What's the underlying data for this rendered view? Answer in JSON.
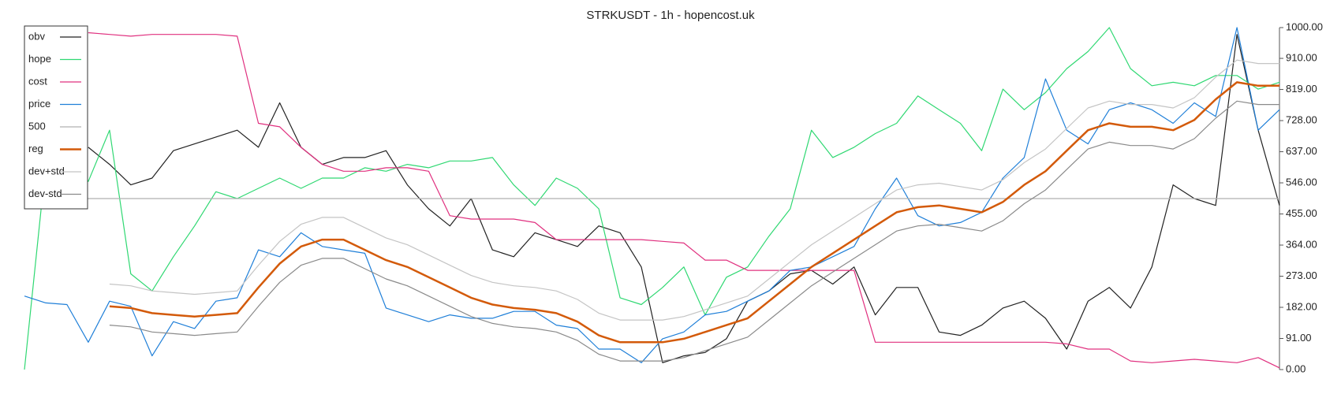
{
  "chart_data": {
    "type": "line",
    "title": "STRKUSDT - 1h - hopencost.uk",
    "ylim": [
      0,
      1000
    ],
    "yticks": [
      {
        "value": 0,
        "label": "0.00"
      },
      {
        "value": 91,
        "label": "91.00"
      },
      {
        "value": 182,
        "label": "182.00"
      },
      {
        "value": 273,
        "label": "273.00"
      },
      {
        "value": 364,
        "label": "364.00"
      },
      {
        "value": 455,
        "label": "455.00"
      },
      {
        "value": 546,
        "label": "546.00"
      },
      {
        "value": 637,
        "label": "637.00"
      },
      {
        "value": 728,
        "label": "728.00"
      },
      {
        "value": 819,
        "label": "819.00"
      },
      {
        "value": 910,
        "label": "910.00"
      },
      {
        "value": 1000,
        "label": "1000.00"
      }
    ],
    "y_axis_side": "right",
    "legend": "top-left",
    "grid": false,
    "series": [
      {
        "name": "obv",
        "color": "#222222",
        "width": 1.2,
        "values": [
          null,
          null,
          null,
          650,
          600,
          540,
          560,
          640,
          660,
          680,
          700,
          650,
          780,
          650,
          600,
          620,
          620,
          640,
          540,
          470,
          420,
          500,
          350,
          330,
          400,
          380,
          360,
          420,
          400,
          300,
          20,
          40,
          50,
          90,
          200,
          230,
          280,
          290,
          250,
          300,
          160,
          240,
          240,
          110,
          100,
          130,
          180,
          200,
          150,
          60,
          200,
          240,
          180,
          300,
          540,
          500,
          480,
          980,
          700,
          480
        ]
      },
      {
        "name": "hope",
        "color": "#2fd872",
        "width": 1.2,
        "values": [
          0,
          600,
          670,
          550,
          700,
          280,
          230,
          330,
          420,
          520,
          500,
          530,
          560,
          530,
          560,
          560,
          590,
          580,
          600,
          590,
          610,
          610,
          620,
          540,
          480,
          560,
          530,
          470,
          210,
          190,
          240,
          300,
          160,
          270,
          300,
          390,
          470,
          700,
          620,
          650,
          690,
          720,
          800,
          760,
          720,
          640,
          820,
          760,
          810,
          880,
          930,
          1000,
          880,
          830,
          840,
          830,
          860,
          860,
          820,
          840
        ]
      },
      {
        "name": "cost",
        "color": "#e0307f",
        "width": 1.2,
        "values": [
          null,
          null,
          null,
          985,
          980,
          975,
          980,
          980,
          980,
          980,
          975,
          720,
          710,
          650,
          600,
          580,
          580,
          590,
          590,
          580,
          450,
          440,
          440,
          440,
          430,
          380,
          380,
          380,
          380,
          380,
          375,
          370,
          320,
          320,
          290,
          290,
          290,
          290,
          290,
          290,
          80,
          80,
          80,
          80,
          80,
          80,
          80,
          80,
          80,
          75,
          60,
          60,
          25,
          20,
          25,
          30,
          25,
          20,
          35,
          5
        ]
      },
      {
        "name": "price",
        "color": "#1f7fd8",
        "width": 1.2,
        "values": [
          215,
          195,
          190,
          80,
          200,
          185,
          40,
          140,
          120,
          200,
          210,
          350,
          330,
          400,
          360,
          350,
          340,
          180,
          160,
          140,
          160,
          150,
          150,
          170,
          170,
          130,
          120,
          60,
          60,
          20,
          90,
          110,
          160,
          170,
          200,
          230,
          290,
          300,
          330,
          360,
          470,
          560,
          450,
          420,
          430,
          460,
          560,
          620,
          850,
          700,
          660,
          760,
          780,
          760,
          720,
          780,
          740,
          1000,
          700,
          760
        ]
      },
      {
        "name": "500",
        "color": "#b0b0b0",
        "width": 1.2,
        "values": [
          500,
          500,
          500,
          500,
          500,
          500,
          500,
          500,
          500,
          500,
          500,
          500,
          500,
          500,
          500,
          500,
          500,
          500,
          500,
          500,
          500,
          500,
          500,
          500,
          500,
          500,
          500,
          500,
          500,
          500,
          500,
          500,
          500,
          500,
          500,
          500,
          500,
          500,
          500,
          500,
          500,
          500,
          500,
          500,
          500,
          500,
          500,
          500,
          500,
          500,
          500,
          500,
          500,
          500,
          500,
          500,
          500,
          500,
          500,
          500
        ]
      },
      {
        "name": "reg",
        "color": "#d35a0a",
        "width": 2.5,
        "values": [
          null,
          null,
          null,
          null,
          185,
          180,
          165,
          160,
          155,
          160,
          165,
          240,
          310,
          360,
          380,
          380,
          350,
          320,
          300,
          270,
          240,
          210,
          190,
          180,
          175,
          165,
          140,
          100,
          80,
          80,
          80,
          90,
          110,
          130,
          150,
          200,
          250,
          300,
          340,
          380,
          420,
          460,
          475,
          480,
          470,
          460,
          490,
          540,
          580,
          640,
          700,
          720,
          710,
          710,
          700,
          730,
          790,
          840,
          830,
          830
        ]
      },
      {
        "name": "dev+std",
        "color": "#c4c4c4",
        "width": 1.2,
        "values": [
          null,
          null,
          null,
          null,
          250,
          245,
          230,
          225,
          220,
          225,
          230,
          305,
          375,
          425,
          445,
          445,
          415,
          385,
          365,
          335,
          305,
          275,
          255,
          245,
          240,
          230,
          205,
          165,
          145,
          145,
          145,
          155,
          175,
          195,
          215,
          265,
          315,
          365,
          405,
          445,
          485,
          525,
          540,
          545,
          535,
          525,
          555,
          605,
          645,
          705,
          765,
          785,
          775,
          775,
          765,
          795,
          855,
          905,
          895,
          895
        ]
      },
      {
        "name": "dev-std",
        "color": "#8a8a8a",
        "width": 1.2,
        "values": [
          null,
          null,
          null,
          null,
          130,
          125,
          110,
          105,
          100,
          105,
          110,
          185,
          255,
          305,
          325,
          325,
          295,
          265,
          245,
          215,
          185,
          155,
          135,
          125,
          120,
          110,
          85,
          45,
          25,
          25,
          25,
          35,
          55,
          75,
          95,
          145,
          195,
          245,
          285,
          325,
          365,
          405,
          420,
          425,
          415,
          405,
          435,
          485,
          525,
          585,
          645,
          665,
          655,
          655,
          645,
          675,
          735,
          785,
          775,
          775
        ]
      }
    ]
  }
}
